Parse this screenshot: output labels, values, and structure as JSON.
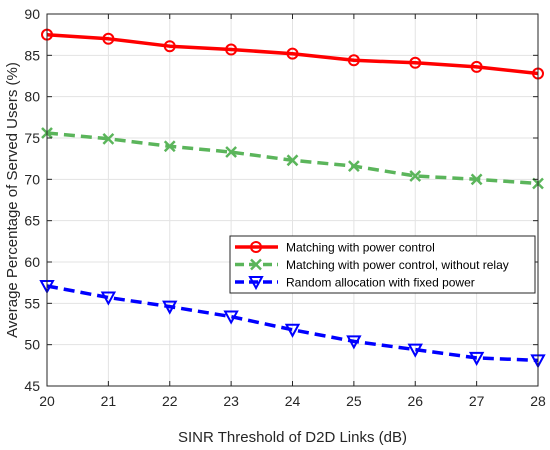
{
  "chart_data": {
    "type": "line",
    "title": "",
    "xlabel": "SINR Threshold of D2D Links (dB)",
    "ylabel": "Average Percentage of Served Users (%)",
    "xlim": [
      20,
      28
    ],
    "ylim": [
      45,
      90
    ],
    "xticks": [
      "20",
      "21",
      "22",
      "23",
      "24",
      "25",
      "26",
      "27",
      "28"
    ],
    "yticks": [
      "45",
      "50",
      "55",
      "60",
      "65",
      "70",
      "75",
      "80",
      "85",
      "90"
    ],
    "grid": true,
    "legend_position": "middle-right",
    "x": [
      20,
      21,
      22,
      23,
      24,
      25,
      26,
      27,
      28
    ],
    "series": [
      {
        "name": "Matching with power control",
        "values": [
          87.5,
          87.0,
          86.1,
          85.7,
          85.2,
          84.4,
          84.1,
          83.6,
          82.8
        ],
        "color": "#ff0000",
        "line_style": "solid",
        "marker": "circle"
      },
      {
        "name": "Matching with power control, without relay",
        "values": [
          75.6,
          74.9,
          74.0,
          73.3,
          72.3,
          71.6,
          70.4,
          70.0,
          69.5
        ],
        "color": "#5bb55b",
        "line_style": "dashed",
        "marker": "x"
      },
      {
        "name": "Random allocation with fixed power",
        "values": [
          57.1,
          55.7,
          54.6,
          53.4,
          51.8,
          50.4,
          49.4,
          48.4,
          48.1
        ],
        "color": "#0000ff",
        "line_style": "dashed",
        "marker": "triangle-down"
      }
    ]
  }
}
